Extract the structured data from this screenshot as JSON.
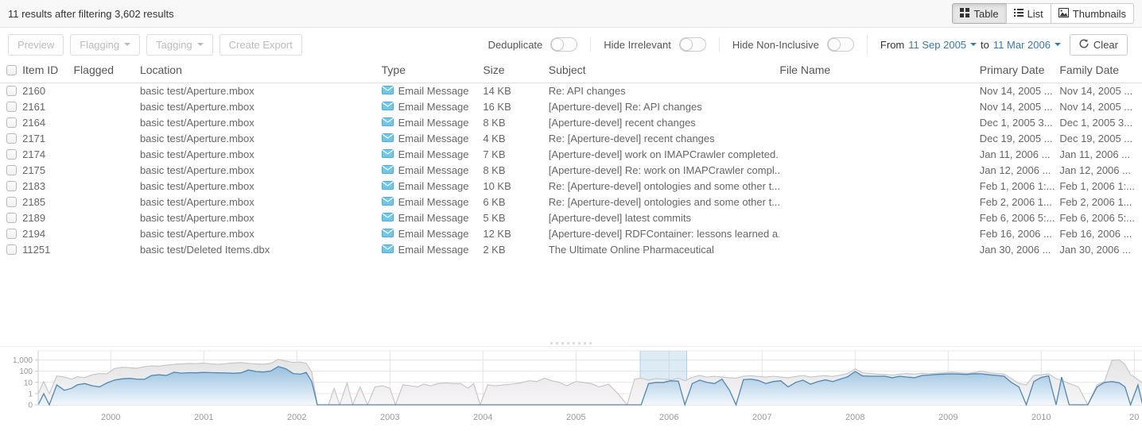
{
  "topbar": {
    "results_summary": "11 results after filtering 3,602 results",
    "view_toggles": [
      {
        "label": "Table",
        "icon": "table-grid-icon",
        "active": true
      },
      {
        "label": "List",
        "icon": "list-icon",
        "active": false
      },
      {
        "label": "Thumbnails",
        "icon": "thumbnails-icon",
        "active": false
      }
    ]
  },
  "toolbar": {
    "preview_label": "Preview",
    "flagging_label": "Flagging",
    "tagging_label": "Tagging",
    "create_export_label": "Create Export",
    "toggles": [
      {
        "label": "Deduplicate",
        "state": "off"
      },
      {
        "label": "Hide Irrelevant",
        "state": "off"
      },
      {
        "label": "Hide Non-Inclusive",
        "state": "off"
      }
    ],
    "date_filter": {
      "from_label": "From",
      "from_date": "11 Sep 2005",
      "to_label": "to",
      "to_date": "11 Mar 2006",
      "clear_label": "Clear"
    }
  },
  "table": {
    "columns": [
      "",
      "Item ID",
      "Flagged",
      "Location",
      "Type",
      "Size",
      "Subject",
      "File Name",
      "Primary Date",
      "Family Date"
    ],
    "rows": [
      {
        "item_id": "2160",
        "flagged": "",
        "location": "basic test/Aperture.mbox",
        "type": "Email Message",
        "size": "14 KB",
        "subject": "Re: API changes",
        "file_name": "",
        "primary_date": "Nov 14, 2005 ...",
        "family_date": "Nov 14, 2005 ..."
      },
      {
        "item_id": "2161",
        "flagged": "",
        "location": "basic test/Aperture.mbox",
        "type": "Email Message",
        "size": "16 KB",
        "subject": "[Aperture-devel] Re: API changes",
        "file_name": "",
        "primary_date": "Nov 14, 2005 ...",
        "family_date": "Nov 14, 2005 ..."
      },
      {
        "item_id": "2164",
        "flagged": "",
        "location": "basic test/Aperture.mbox",
        "type": "Email Message",
        "size": "8 KB",
        "subject": "[Aperture-devel] recent changes",
        "file_name": "",
        "primary_date": "Dec 1, 2005 3...",
        "family_date": "Dec 1, 2005 3..."
      },
      {
        "item_id": "2171",
        "flagged": "",
        "location": "basic test/Aperture.mbox",
        "type": "Email Message",
        "size": "4 KB",
        "subject": "Re: [Aperture-devel] recent changes",
        "file_name": "",
        "primary_date": "Dec 19, 2005 ...",
        "family_date": "Dec 19, 2005 ..."
      },
      {
        "item_id": "2174",
        "flagged": "",
        "location": "basic test/Aperture.mbox",
        "type": "Email Message",
        "size": "7 KB",
        "subject": "[Aperture-devel] work on IMAPCrawler completed...",
        "file_name": "",
        "primary_date": "Jan 11, 2006 ...",
        "family_date": "Jan 11, 2006 ..."
      },
      {
        "item_id": "2175",
        "flagged": "",
        "location": "basic test/Aperture.mbox",
        "type": "Email Message",
        "size": "8 KB",
        "subject": "[Aperture-devel] Re: work on IMAPCrawler compl...",
        "file_name": "",
        "primary_date": "Jan 12, 2006 ...",
        "family_date": "Jan 12, 2006 ..."
      },
      {
        "item_id": "2183",
        "flagged": "",
        "location": "basic test/Aperture.mbox",
        "type": "Email Message",
        "size": "10 KB",
        "subject": "Re: [Aperture-devel] ontologies and some other t...",
        "file_name": "",
        "primary_date": "Feb 1, 2006 1:...",
        "family_date": "Feb 1, 2006 1:..."
      },
      {
        "item_id": "2185",
        "flagged": "",
        "location": "basic test/Aperture.mbox",
        "type": "Email Message",
        "size": "6 KB",
        "subject": "Re: [Aperture-devel] ontologies and some other t...",
        "file_name": "",
        "primary_date": "Feb 2, 2006 1...",
        "family_date": "Feb 2, 2006 1..."
      },
      {
        "item_id": "2189",
        "flagged": "",
        "location": "basic test/Aperture.mbox",
        "type": "Email Message",
        "size": "5 KB",
        "subject": "[Aperture-devel] latest commits",
        "file_name": "",
        "primary_date": "Feb 6, 2006 5:...",
        "family_date": "Feb 6, 2006 5:..."
      },
      {
        "item_id": "2194",
        "flagged": "",
        "location": "basic test/Aperture.mbox",
        "type": "Email Message",
        "size": "12 KB",
        "subject": "[Aperture-devel] RDFContainer: lessons learned a...",
        "file_name": "",
        "primary_date": "Feb 16, 2006 ...",
        "family_date": "Feb 16, 2006 ..."
      },
      {
        "item_id": "11251",
        "flagged": "",
        "location": "basic test/Deleted Items.dbx",
        "type": "Email Message",
        "size": "2 KB",
        "subject": "The Ultimate Online Pharmaceutical",
        "file_name": "",
        "primary_date": "Jan 30, 2006 ...",
        "family_date": "Jan 30, 2006 ..."
      }
    ]
  },
  "chart_data": {
    "type": "area",
    "x_unit": "year",
    "x_range": [
      1999.22,
      2011.09
    ],
    "y_scale": "log",
    "y_ticks": [
      "1,000",
      "100",
      "10",
      "1",
      "0"
    ],
    "x_ticks": [
      "2000",
      "2001",
      "2002",
      "2003",
      "2004",
      "2005",
      "2006",
      "2007",
      "2008",
      "2009",
      "2010",
      "20"
    ],
    "selection": {
      "from": 2005.69,
      "to": 2006.19,
      "from_date": "11 Sep 2005",
      "to_date": "11 Mar 2006"
    },
    "series_names": [
      "all-results",
      "filtered-results"
    ],
    "points": [
      [
        1999.22,
        1,
        0
      ],
      [
        1999.28,
        12,
        1
      ],
      [
        1999.34,
        1,
        0
      ],
      [
        1999.42,
        38,
        6
      ],
      [
        1999.5,
        30,
        2
      ],
      [
        1999.58,
        20,
        3
      ],
      [
        1999.64,
        32,
        6
      ],
      [
        1999.72,
        27,
        8
      ],
      [
        1999.8,
        48,
        5
      ],
      [
        1999.88,
        62,
        4
      ],
      [
        1999.96,
        58,
        9
      ],
      [
        2000.04,
        175,
        16
      ],
      [
        2000.12,
        225,
        21
      ],
      [
        2000.2,
        205,
        23
      ],
      [
        2000.28,
        185,
        20
      ],
      [
        2000.36,
        255,
        19
      ],
      [
        2000.44,
        305,
        42
      ],
      [
        2000.52,
        285,
        48
      ],
      [
        2000.6,
        355,
        42
      ],
      [
        2000.68,
        405,
        82
      ],
      [
        2000.76,
        455,
        68
      ],
      [
        2000.84,
        505,
        75
      ],
      [
        2000.92,
        485,
        72
      ],
      [
        2001.0,
        525,
        80
      ],
      [
        2001.08,
        455,
        75
      ],
      [
        2001.16,
        405,
        72
      ],
      [
        2001.24,
        485,
        70
      ],
      [
        2001.32,
        555,
        65
      ],
      [
        2001.4,
        605,
        72
      ],
      [
        2001.48,
        505,
        130
      ],
      [
        2001.56,
        455,
        95
      ],
      [
        2001.64,
        425,
        85
      ],
      [
        2001.72,
        505,
        105
      ],
      [
        2001.8,
        1150,
        260
      ],
      [
        2001.88,
        820,
        170
      ],
      [
        2001.96,
        620,
        62
      ],
      [
        2002.04,
        660,
        55
      ],
      [
        2002.1,
        510,
        78
      ],
      [
        2002.16,
        85,
        12
      ],
      [
        2002.22,
        0,
        0
      ],
      [
        2002.34,
        0,
        0
      ],
      [
        2002.4,
        3,
        0
      ],
      [
        2002.46,
        0,
        0
      ],
      [
        2002.54,
        9,
        0
      ],
      [
        2002.6,
        0,
        0
      ],
      [
        2002.68,
        4,
        0
      ],
      [
        2002.76,
        0,
        0
      ],
      [
        2002.84,
        4,
        0
      ],
      [
        2002.92,
        5,
        0
      ],
      [
        2003.0,
        3,
        0
      ],
      [
        2003.06,
        0,
        0
      ],
      [
        2003.14,
        6,
        0
      ],
      [
        2003.22,
        5,
        0
      ],
      [
        2003.3,
        4,
        0
      ],
      [
        2003.36,
        7,
        0
      ],
      [
        2003.44,
        5,
        0
      ],
      [
        2003.52,
        8,
        0
      ],
      [
        2003.6,
        9,
        0
      ],
      [
        2003.68,
        8,
        0
      ],
      [
        2003.76,
        8,
        0
      ],
      [
        2003.84,
        3,
        0
      ],
      [
        2003.9,
        8,
        0
      ],
      [
        2003.97,
        0,
        0
      ],
      [
        2004.05,
        6,
        0
      ],
      [
        2004.13,
        5,
        0
      ],
      [
        2004.22,
        6,
        0
      ],
      [
        2004.3,
        7,
        0
      ],
      [
        2004.4,
        9,
        0
      ],
      [
        2004.5,
        14,
        0
      ],
      [
        2004.58,
        12,
        0
      ],
      [
        2004.66,
        24,
        0
      ],
      [
        2004.74,
        14,
        0
      ],
      [
        2004.82,
        10,
        0
      ],
      [
        2004.9,
        5,
        0
      ],
      [
        2005.0,
        12,
        0
      ],
      [
        2005.08,
        10,
        0
      ],
      [
        2005.16,
        8,
        0
      ],
      [
        2005.25,
        4,
        0
      ],
      [
        2005.35,
        7,
        0
      ],
      [
        2005.45,
        1,
        0
      ],
      [
        2005.55,
        0,
        0
      ],
      [
        2005.63,
        20,
        0
      ],
      [
        2005.7,
        24,
        0
      ],
      [
        2005.78,
        16,
        8
      ],
      [
        2005.86,
        22,
        10
      ],
      [
        2005.94,
        20,
        10
      ],
      [
        2006.02,
        17,
        14
      ],
      [
        2006.1,
        24,
        13
      ],
      [
        2006.17,
        14,
        0
      ],
      [
        2006.25,
        28,
        8
      ],
      [
        2006.33,
        42,
        16
      ],
      [
        2006.41,
        30,
        10
      ],
      [
        2006.49,
        36,
        8
      ],
      [
        2006.57,
        30,
        20
      ],
      [
        2006.65,
        26,
        2
      ],
      [
        2006.72,
        24,
        0
      ],
      [
        2006.8,
        36,
        18
      ],
      [
        2006.88,
        40,
        20
      ],
      [
        2006.96,
        34,
        15
      ],
      [
        2007.04,
        30,
        8
      ],
      [
        2007.12,
        36,
        12
      ],
      [
        2007.2,
        30,
        14
      ],
      [
        2007.28,
        26,
        4
      ],
      [
        2007.36,
        34,
        10
      ],
      [
        2007.44,
        42,
        16
      ],
      [
        2007.52,
        30,
        7
      ],
      [
        2007.6,
        36,
        12
      ],
      [
        2007.68,
        40,
        17
      ],
      [
        2007.76,
        34,
        12
      ],
      [
        2007.84,
        46,
        20
      ],
      [
        2007.92,
        62,
        32
      ],
      [
        2008.0,
        170,
        95
      ],
      [
        2008.08,
        72,
        38
      ],
      [
        2008.16,
        62,
        36
      ],
      [
        2008.24,
        56,
        36
      ],
      [
        2008.32,
        52,
        36
      ],
      [
        2008.4,
        46,
        26
      ],
      [
        2008.48,
        56,
        36
      ],
      [
        2008.56,
        62,
        30
      ],
      [
        2008.64,
        56,
        26
      ],
      [
        2008.72,
        66,
        42
      ],
      [
        2008.8,
        60,
        46
      ],
      [
        2008.88,
        66,
        52
      ],
      [
        2008.96,
        72,
        56
      ],
      [
        2009.04,
        82,
        58
      ],
      [
        2009.12,
        72,
        56
      ],
      [
        2009.2,
        66,
        52
      ],
      [
        2009.28,
        76,
        60
      ],
      [
        2009.36,
        105,
        58
      ],
      [
        2009.44,
        72,
        48
      ],
      [
        2009.52,
        62,
        42
      ],
      [
        2009.6,
        56,
        36
      ],
      [
        2009.68,
        22,
        10
      ],
      [
        2009.76,
        8,
        4
      ],
      [
        2009.84,
        6,
        0
      ],
      [
        2009.92,
        42,
        12
      ],
      [
        2010.0,
        48,
        28
      ],
      [
        2010.08,
        58,
        38
      ],
      [
        2010.16,
        22,
        0
      ],
      [
        2010.22,
        16,
        30
      ],
      [
        2010.3,
        8,
        0
      ],
      [
        2010.4,
        4,
        0
      ],
      [
        2010.5,
        0,
        0
      ],
      [
        2010.6,
        6,
        4
      ],
      [
        2010.68,
        12,
        10
      ],
      [
        2010.76,
        950,
        12
      ],
      [
        2010.84,
        1050,
        9
      ],
      [
        2010.9,
        400,
        4
      ],
      [
        2010.96,
        50,
        0
      ],
      [
        2011.04,
        18,
        6
      ],
      [
        2011.09,
        8,
        0
      ]
    ]
  },
  "colors": {
    "accent_blue": "#337ab7",
    "selection_band": "#aecfe5",
    "series_blue_line": "#4f87b5",
    "series_blue_fill_top": "#8fbcdd",
    "series_gray_line": "#c4c4c4",
    "series_gray_fill": "#e9e9e9",
    "email_icon_blue": "#6ec8ea"
  }
}
